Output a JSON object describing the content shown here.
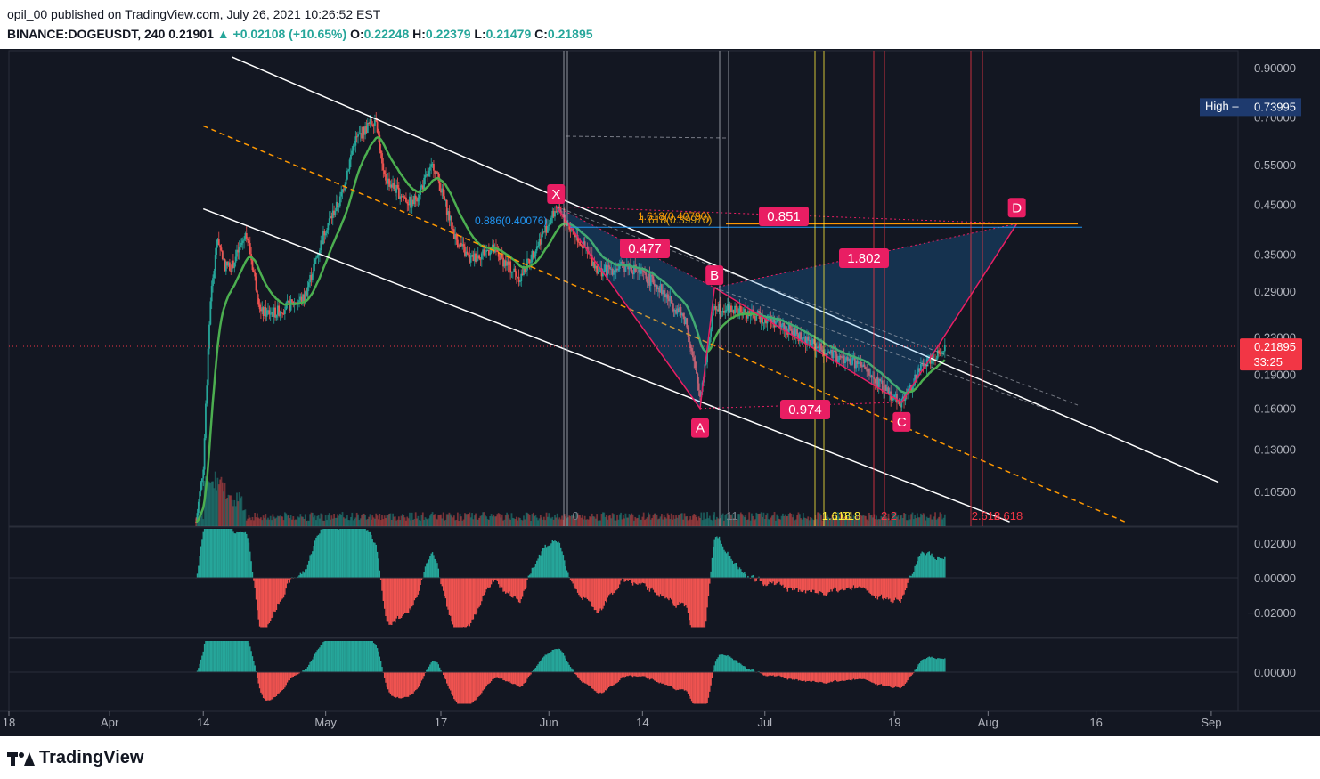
{
  "header": {
    "line1": "opil_00 published on TradingView.com, July 26, 2021 10:26:52 EST",
    "symbol": "BINANCE:DOGEUSDT, 240",
    "last": "0.21901",
    "change": "▲ +0.02108 (+10.65%)",
    "o_label": "O:",
    "o": "0.22248",
    "h_label": "H:",
    "h": "0.22379",
    "l_label": "L:",
    "l": "0.21479",
    "c_label": "C:",
    "c": "0.21895"
  },
  "colors": {
    "background": "#131722",
    "up": "#26a69a",
    "down": "#ef5350",
    "ema": "#4caf50",
    "pattern": "#e91e63",
    "fib_blue": "#2196f3",
    "fib_orange": "#ff9800",
    "price_label": "#f23645",
    "high_label": "#1e3a6e"
  },
  "price_axis": [
    "0.90000",
    "0.70000",
    "0.55000",
    "0.45000",
    "0.35000",
    "0.29000",
    "0.23000",
    "0.19000",
    "0.16000",
    "0.13000",
    "0.10500"
  ],
  "osc1_axis": [
    "0.02000",
    "0.00000",
    "−0.02000"
  ],
  "osc2_axis": [
    "0.00000"
  ],
  "time_axis": [
    "18",
    "Apr",
    "14",
    "May",
    "17",
    "Jun",
    "14",
    "Jul",
    "19",
    "Aug",
    "16",
    "Sep"
  ],
  "high_label": {
    "text": "High",
    "value": "0.73995"
  },
  "price_label": {
    "value": "0.21895",
    "countdown": "33:25"
  },
  "pattern_points": [
    "X",
    "A",
    "B",
    "C",
    "D"
  ],
  "pattern_ratios": [
    "0.477",
    "0.974",
    "1.802",
    "0.851"
  ],
  "fib_labels": {
    "blue": "0.886(0.40076)",
    "orange": "1.618(0.40790)",
    "orange_behind": "1.618(0.39970)"
  },
  "vline_labels": [
    "0",
    "11",
    "1.618",
    "1.618",
    "2.2",
    "2.618",
    "2.618"
  ],
  "footer": {
    "brand": "TradingView"
  },
  "chart_data": {
    "type": "candlestick",
    "title": "BINANCE:DOGEUSDT, 240",
    "x_range": [
      "2021-03-18",
      "2021-09-02"
    ],
    "y_scale": "log",
    "ylim": [
      0.09,
      0.95
    ],
    "ema_color": "#4caf50",
    "close_series": [
      {
        "date": "2021-04-13",
        "close": 0.09
      },
      {
        "date": "2021-04-14",
        "close": 0.12
      },
      {
        "date": "2021-04-15",
        "close": 0.28
      },
      {
        "date": "2021-04-16",
        "close": 0.38
      },
      {
        "date": "2021-04-17",
        "close": 0.33
      },
      {
        "date": "2021-04-18",
        "close": 0.33
      },
      {
        "date": "2021-04-20",
        "close": 0.39
      },
      {
        "date": "2021-04-22",
        "close": 0.26
      },
      {
        "date": "2021-04-24",
        "close": 0.26
      },
      {
        "date": "2021-04-26",
        "close": 0.27
      },
      {
        "date": "2021-04-28",
        "close": 0.28
      },
      {
        "date": "2021-05-01",
        "close": 0.4
      },
      {
        "date": "2021-05-03",
        "close": 0.46
      },
      {
        "date": "2021-05-05",
        "close": 0.62
      },
      {
        "date": "2021-05-08",
        "close": 0.7
      },
      {
        "date": "2021-05-09",
        "close": 0.52
      },
      {
        "date": "2021-05-11",
        "close": 0.48
      },
      {
        "date": "2021-05-13",
        "close": 0.45
      },
      {
        "date": "2021-05-16",
        "close": 0.55
      },
      {
        "date": "2021-05-19",
        "close": 0.38
      },
      {
        "date": "2021-05-21",
        "close": 0.34
      },
      {
        "date": "2021-05-24",
        "close": 0.36
      },
      {
        "date": "2021-05-28",
        "close": 0.31
      },
      {
        "date": "2021-06-02",
        "close": 0.44
      },
      {
        "date": "2021-06-05",
        "close": 0.38
      },
      {
        "date": "2021-06-08",
        "close": 0.32
      },
      {
        "date": "2021-06-12",
        "close": 0.33
      },
      {
        "date": "2021-06-16",
        "close": 0.3
      },
      {
        "date": "2021-06-20",
        "close": 0.25
      },
      {
        "date": "2021-06-22",
        "close": 0.17
      },
      {
        "date": "2021-06-24",
        "close": 0.27
      },
      {
        "date": "2021-06-28",
        "close": 0.26
      },
      {
        "date": "2021-07-02",
        "close": 0.25
      },
      {
        "date": "2021-07-06",
        "close": 0.23
      },
      {
        "date": "2021-07-10",
        "close": 0.21
      },
      {
        "date": "2021-07-14",
        "close": 0.2
      },
      {
        "date": "2021-07-17",
        "close": 0.18
      },
      {
        "date": "2021-07-20",
        "close": 0.165
      },
      {
        "date": "2021-07-23",
        "close": 0.2
      },
      {
        "date": "2021-07-26",
        "close": 0.219
      }
    ],
    "harmonic_pattern": {
      "X": {
        "date": "2021-06-02",
        "price": 0.445
      },
      "A": {
        "date": "2021-06-22",
        "price": 0.16
      },
      "B": {
        "date": "2021-06-24",
        "price": 0.295
      },
      "C": {
        "date": "2021-07-20",
        "price": 0.165
      },
      "D": {
        "date": "2021-08-05",
        "price": 0.408
      }
    },
    "channel_upper": [
      {
        "date": "2021-04-18",
        "price": 0.95
      },
      {
        "date": "2021-09-02",
        "price": 0.11
      }
    ],
    "channel_lower": [
      {
        "date": "2021-04-14",
        "price": 0.44
      },
      {
        "date": "2021-08-04",
        "price": 0.09
      }
    ],
    "channel_mid": [
      {
        "date": "2021-04-14",
        "price": 0.67
      },
      {
        "date": "2021-08-20",
        "price": 0.09
      }
    ]
  }
}
